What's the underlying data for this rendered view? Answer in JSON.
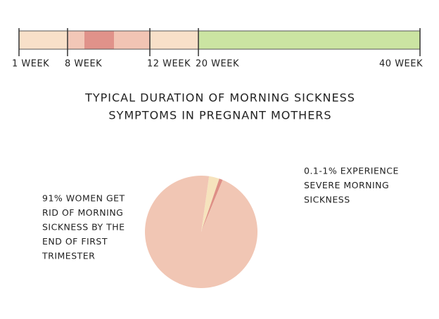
{
  "chart_data": [
    {
      "type": "timeline",
      "categories": [
        "1 WEEK",
        "8 WEEK",
        "12 WEEK",
        "20 WEEK",
        "40 WEEK"
      ]
    },
    {
      "type": "pie",
      "title": [
        "TYPICAL DURATION OF MORNING SICKNESS",
        "SYMPTOMS IN PREGNANT MOTHERS"
      ],
      "series": [
        {
          "values": [
            3,
            1,
            96
          ],
          "colors": [
            "#f6e3bd",
            "#de8f86",
            "#f1c6b4"
          ]
        }
      ],
      "annotations": [
        [
          "91% WOMEN GET",
          "RID OF MORNING",
          "SICKNESS BY THE",
          "END OF FIRST",
          "TRIMESTER"
        ],
        [
          "0.1-1% EXPERIENCE",
          "SEVERE MORNING",
          "SICKNESS"
        ]
      ]
    }
  ]
}
